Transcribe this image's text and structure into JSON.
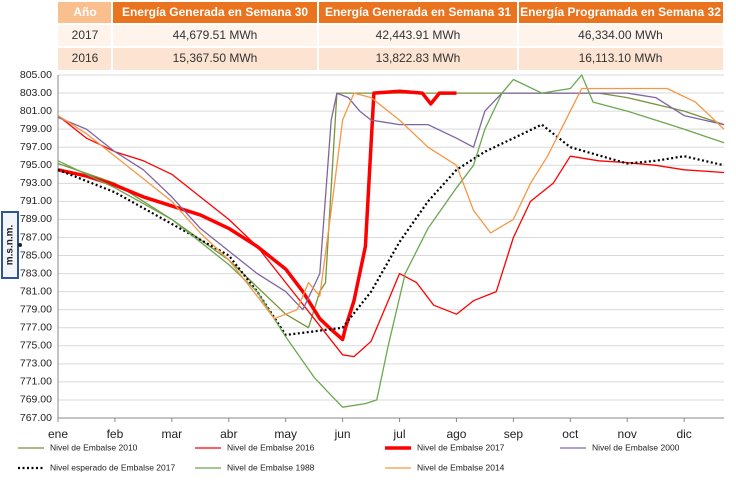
{
  "table": {
    "header": [
      "Año",
      "Energía Generada en Semana 30",
      "Energía Generada en Semana 31",
      "Energía Programada en Semana 32"
    ],
    "rows": [
      [
        "2017",
        "44,679.51 MWh",
        "42,443.91 MWh",
        "46,334.00 MWh"
      ],
      [
        "2016",
        "15,367.50 MWh",
        "13,822.83 MWh",
        "16,113.10 MWh"
      ]
    ]
  },
  "chart_data": {
    "type": "line",
    "y_label": "m.s.n.m.",
    "grid": true,
    "xlim": [
      0,
      11.7
    ],
    "xticks": [
      {
        "value": 0,
        "label": "ene"
      },
      {
        "value": 1,
        "label": "feb"
      },
      {
        "value": 2,
        "label": "mar"
      },
      {
        "value": 3,
        "label": "abr"
      },
      {
        "value": 4,
        "label": "may"
      },
      {
        "value": 5,
        "label": "jun"
      },
      {
        "value": 6,
        "label": "jul"
      },
      {
        "value": 7,
        "label": "ago"
      },
      {
        "value": 8,
        "label": "sep"
      },
      {
        "value": 9,
        "label": "oct"
      },
      {
        "value": 10,
        "label": "nov"
      },
      {
        "value": 11,
        "label": "dic"
      }
    ],
    "ylim": [
      767,
      805
    ],
    "yticks": [
      {
        "value": 767,
        "label": "767.00"
      },
      {
        "value": 769,
        "label": "769.00"
      },
      {
        "value": 771,
        "label": "771.00"
      },
      {
        "value": 773,
        "label": "773.00"
      },
      {
        "value": 775,
        "label": "775.00"
      },
      {
        "value": 777,
        "label": "777.00"
      },
      {
        "value": 779,
        "label": "779.00"
      },
      {
        "value": 781,
        "label": "781.00"
      },
      {
        "value": 783,
        "label": "783.00"
      },
      {
        "value": 785,
        "label": "785.00"
      },
      {
        "value": 787,
        "label": "787.00"
      },
      {
        "value": 789,
        "label": "789.00"
      },
      {
        "value": 791,
        "label": "791.00"
      },
      {
        "value": 793,
        "label": "793.00"
      },
      {
        "value": 795,
        "label": "795.00"
      },
      {
        "value": 797,
        "label": "797.00"
      },
      {
        "value": 799,
        "label": "799.00"
      },
      {
        "value": 801,
        "label": "801.00"
      },
      {
        "value": 803,
        "label": "803.00"
      },
      {
        "value": 805,
        "label": "805.00"
      }
    ],
    "series": [
      {
        "name": "Nivel de Embalse 2010",
        "color": "#77933c",
        "width": 1.3,
        "style": "solid",
        "x": [
          0,
          1,
          2,
          3,
          4,
          4.4,
          4.6,
          4.7,
          4.9,
          6,
          7,
          8,
          9,
          9.5,
          10,
          11,
          11.7
        ],
        "values": [
          795.2,
          793,
          789,
          784.5,
          778.5,
          777,
          781,
          782,
          803,
          803,
          803,
          803,
          803,
          803,
          802.5,
          801,
          799.5
        ]
      },
      {
        "name": "Nivel de Embalse 2016",
        "color": "#ff0000",
        "width": 1.3,
        "style": "solid",
        "x": [
          0,
          0.5,
          1,
          1.5,
          2,
          2.5,
          3,
          3.5,
          4,
          4.5,
          5,
          5.2,
          5.5,
          5.8,
          6,
          6.3,
          6.6,
          7,
          7.3,
          7.7,
          8,
          8.3,
          8.7,
          9,
          9.5,
          10,
          10.5,
          11,
          11.7
        ],
        "values": [
          800.5,
          798,
          796.5,
          795.5,
          794,
          791.5,
          789,
          786,
          782,
          778,
          774,
          773.8,
          775.5,
          780,
          783,
          782,
          779.5,
          778.5,
          780,
          781,
          787,
          791,
          793,
          796,
          795.5,
          795.3,
          795,
          794.5,
          794.2
        ]
      },
      {
        "name": "Nivel de Embalse 2017",
        "color": "#ff0000",
        "width": 3.5,
        "style": "solid",
        "x": [
          0,
          0.5,
          1,
          1.5,
          2,
          2.5,
          3,
          3.5,
          4,
          4.3,
          4.6,
          4.8,
          5,
          5.05,
          5.2,
          5.4,
          5.55,
          6,
          6.4,
          6.55,
          6.7,
          7
        ],
        "values": [
          794.5,
          793.8,
          792.8,
          791.5,
          790.5,
          789.5,
          788,
          786,
          783.5,
          781,
          778,
          776.8,
          775.7,
          777,
          780,
          786,
          803,
          803.2,
          803,
          801.8,
          803,
          803
        ]
      },
      {
        "name": "Nivel de Embalse 2000",
        "color": "#8064a2",
        "width": 1.3,
        "style": "solid",
        "x": [
          0,
          0.5,
          1,
          1.5,
          2,
          2.5,
          3,
          3.5,
          4,
          4.3,
          4.6,
          4.8,
          4.9,
          5.1,
          5.3,
          5.5,
          6,
          6.5,
          7,
          7.3,
          7.5,
          7.8,
          8.5,
          9,
          10,
          10.5,
          11,
          11.7
        ],
        "values": [
          800.3,
          799,
          796.5,
          794.5,
          791.5,
          788,
          785.5,
          783,
          781,
          779,
          783,
          800,
          803,
          802.5,
          801,
          800,
          799.5,
          799.5,
          798,
          797,
          801,
          803,
          803,
          803,
          803,
          802.5,
          800.5,
          799.5
        ]
      },
      {
        "name": "Nivel esperado de Embalse 2017",
        "color": "#000000",
        "width": 2.2,
        "style": "dotted",
        "x": [
          0,
          1,
          2,
          3,
          3.5,
          4,
          5,
          5.5,
          6,
          6.5,
          7,
          7.5,
          8,
          8.5,
          9,
          10,
          10.5,
          11,
          11.7
        ],
        "values": [
          794.5,
          792,
          788.5,
          785,
          781,
          776.2,
          777,
          781,
          786.5,
          791,
          794.5,
          796.5,
          798,
          799.5,
          797,
          795.2,
          795.5,
          796,
          795
        ]
      },
      {
        "name": "Nivel de Embalse 1988",
        "color": "#6aa84f",
        "width": 1.3,
        "style": "solid",
        "x": [
          0,
          1,
          2,
          3,
          3.5,
          4,
          4.5,
          4.8,
          5,
          5.4,
          5.6,
          5.8,
          6.1,
          6.5,
          7,
          7.3,
          7.5,
          7.8,
          8,
          8.5,
          9,
          9.2,
          9.4,
          10,
          10.5,
          11,
          11.7
        ],
        "values": [
          795.5,
          792.5,
          789,
          784,
          781,
          776,
          771.5,
          769.5,
          768.2,
          768.6,
          769,
          775,
          783,
          788,
          792.5,
          795,
          799,
          803,
          804.5,
          803,
          803.5,
          805,
          802,
          801,
          800,
          799,
          797.5
        ]
      },
      {
        "name": "Nivel de Embalse 2014",
        "color": "#f79646",
        "width": 1.3,
        "style": "solid",
        "x": [
          0,
          0.5,
          1,
          1.5,
          2,
          2.5,
          3,
          3.5,
          3.8,
          4.2,
          4.4,
          4.6,
          4.8,
          5,
          5.2,
          5.5,
          6,
          6.5,
          7,
          7.3,
          7.6,
          8,
          8.3,
          8.6,
          9,
          9.2,
          10,
          10.7,
          11.2,
          11.7
        ],
        "values": [
          800.5,
          798.5,
          796,
          793.5,
          791,
          787.5,
          784.5,
          780.5,
          778,
          779,
          782,
          780.5,
          790,
          800,
          803,
          802.5,
          800,
          797,
          795,
          790,
          787.5,
          789,
          793,
          796,
          801,
          803.5,
          803.5,
          803.5,
          802,
          799
        ]
      }
    ]
  }
}
